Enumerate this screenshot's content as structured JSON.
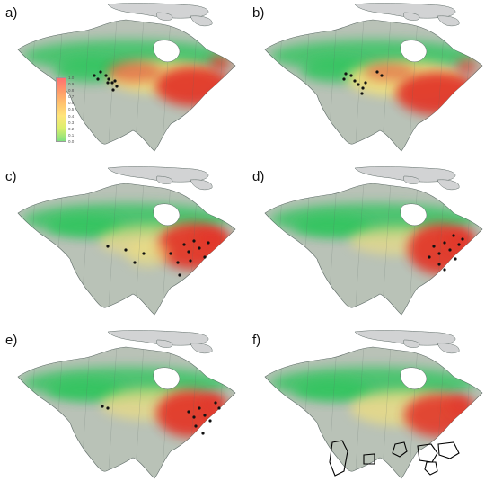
{
  "panels": [
    {
      "label": "a)",
      "pattern": "a",
      "has_legend": true,
      "has_outlines": false
    },
    {
      "label": "b)",
      "pattern": "b",
      "has_legend": false,
      "has_outlines": false
    },
    {
      "label": "c)",
      "pattern": "c",
      "has_legend": false,
      "has_outlines": false
    },
    {
      "label": "d)",
      "pattern": "d",
      "has_legend": false,
      "has_outlines": false
    },
    {
      "label": "e)",
      "pattern": "e",
      "has_legend": false,
      "has_outlines": false
    },
    {
      "label": "f)",
      "pattern": "f",
      "has_legend": false,
      "has_outlines": true
    }
  ],
  "legend": {
    "ticks": [
      "1.0",
      "0.9",
      "0.8",
      "0.7",
      "0.6",
      "0.5",
      "0.4",
      "0.3",
      "0.2",
      "0.1",
      "0.0"
    ],
    "colors": [
      "#ff7070",
      "#ff9a6a",
      "#ffc26e",
      "#ffe57a",
      "#d9ef6c",
      "#7fe07f"
    ]
  },
  "colors": {
    "land_base": "#b9c2b7",
    "arctic": "#d2d3d4",
    "border": "#5d6a66",
    "low": "#31c45e",
    "mid": "#f2e07c",
    "high": "#e2392a",
    "points": "#111111"
  }
}
